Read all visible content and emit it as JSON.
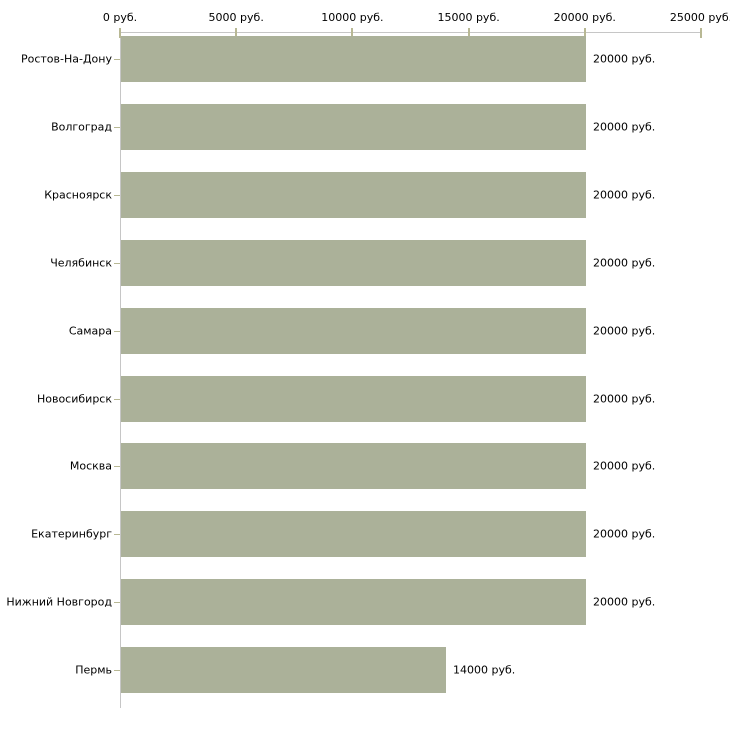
{
  "chart_data": {
    "type": "bar",
    "orientation": "horizontal",
    "title": "",
    "xlabel": "",
    "ylabel": "",
    "grid": false,
    "legend": false,
    "categories": [
      "Ростов-На-Дону",
      "Волгоград",
      "Красноярск",
      "Челябинск",
      "Самара",
      "Новосибирск",
      "Москва",
      "Екатеринбург",
      "Нижний Новгород",
      "Пермь"
    ],
    "values": [
      20000,
      20000,
      20000,
      20000,
      20000,
      20000,
      20000,
      20000,
      20000,
      14000
    ],
    "value_labels": [
      "20000 руб.",
      "20000 руб.",
      "20000 руб.",
      "20000 руб.",
      "20000 руб.",
      "20000 руб.",
      "20000 руб.",
      "20000 руб.",
      "20000 руб.",
      "14000 руб."
    ],
    "x_axis": {
      "position": "top",
      "xlim": [
        0,
        25000
      ],
      "tick_values": [
        0,
        5000,
        10000,
        15000,
        20000,
        25000
      ],
      "tick_labels": [
        "0 руб.",
        "5000 руб.",
        "10000 руб.",
        "15000 руб.",
        "20000 руб.",
        "25000 руб."
      ]
    },
    "colors": {
      "bar": "#abb199",
      "axis_line": "#c6c6c6",
      "tick_mark": "#b8b894",
      "text": "#000000",
      "background": "#ffffff"
    }
  }
}
